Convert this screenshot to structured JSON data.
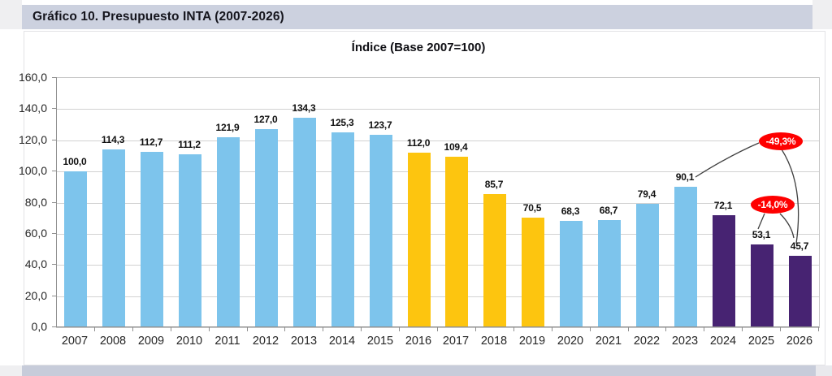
{
  "header": {
    "title": "Gráfico 10. Presupuesto INTA (2007-2026)"
  },
  "chart_data": {
    "type": "bar",
    "title": "Índice (Base 2007=100)",
    "categories": [
      "2007",
      "2008",
      "2009",
      "2010",
      "2011",
      "2012",
      "2013",
      "2014",
      "2015",
      "2016",
      "2017",
      "2018",
      "2019",
      "2020",
      "2021",
      "2022",
      "2023",
      "2024",
      "2025",
      "2026"
    ],
    "values": [
      100.0,
      114.3,
      112.7,
      111.2,
      121.9,
      127.0,
      134.3,
      125.3,
      123.7,
      112.0,
      109.4,
      85.7,
      70.5,
      68.3,
      68.7,
      79.4,
      90.1,
      72.1,
      53.1,
      45.7
    ],
    "value_labels": [
      "100,0",
      "114,3",
      "112,7",
      "111,2",
      "121,9",
      "127,0",
      "134,3",
      "125,3",
      "123,7",
      "112,0",
      "109,4",
      "85,7",
      "70,5",
      "68,3",
      "68,7",
      "79,4",
      "90,1",
      "72,1",
      "53,1",
      "45,7"
    ],
    "bar_color_keys": [
      "blue",
      "blue",
      "blue",
      "blue",
      "blue",
      "blue",
      "blue",
      "blue",
      "blue",
      "yellow",
      "yellow",
      "yellow",
      "yellow",
      "blue",
      "blue",
      "blue",
      "blue",
      "purple",
      "purple",
      "purple"
    ],
    "colors": {
      "blue": "#7dc4ec",
      "yellow": "#fdc50f",
      "purple": "#472372",
      "annotation_fill": "#fe0000",
      "annotation_text": "#ffffff"
    },
    "ylim": [
      0,
      160
    ],
    "ytick_step": 20,
    "ytick_labels": [
      "0,0",
      "20,0",
      "40,0",
      "60,0",
      "80,0",
      "100,0",
      "120,0",
      "140,0",
      "160,0"
    ],
    "grid": true,
    "legend": "none",
    "annotations": [
      {
        "text": "-49,3%"
      },
      {
        "text": "-14,0%"
      }
    ]
  }
}
